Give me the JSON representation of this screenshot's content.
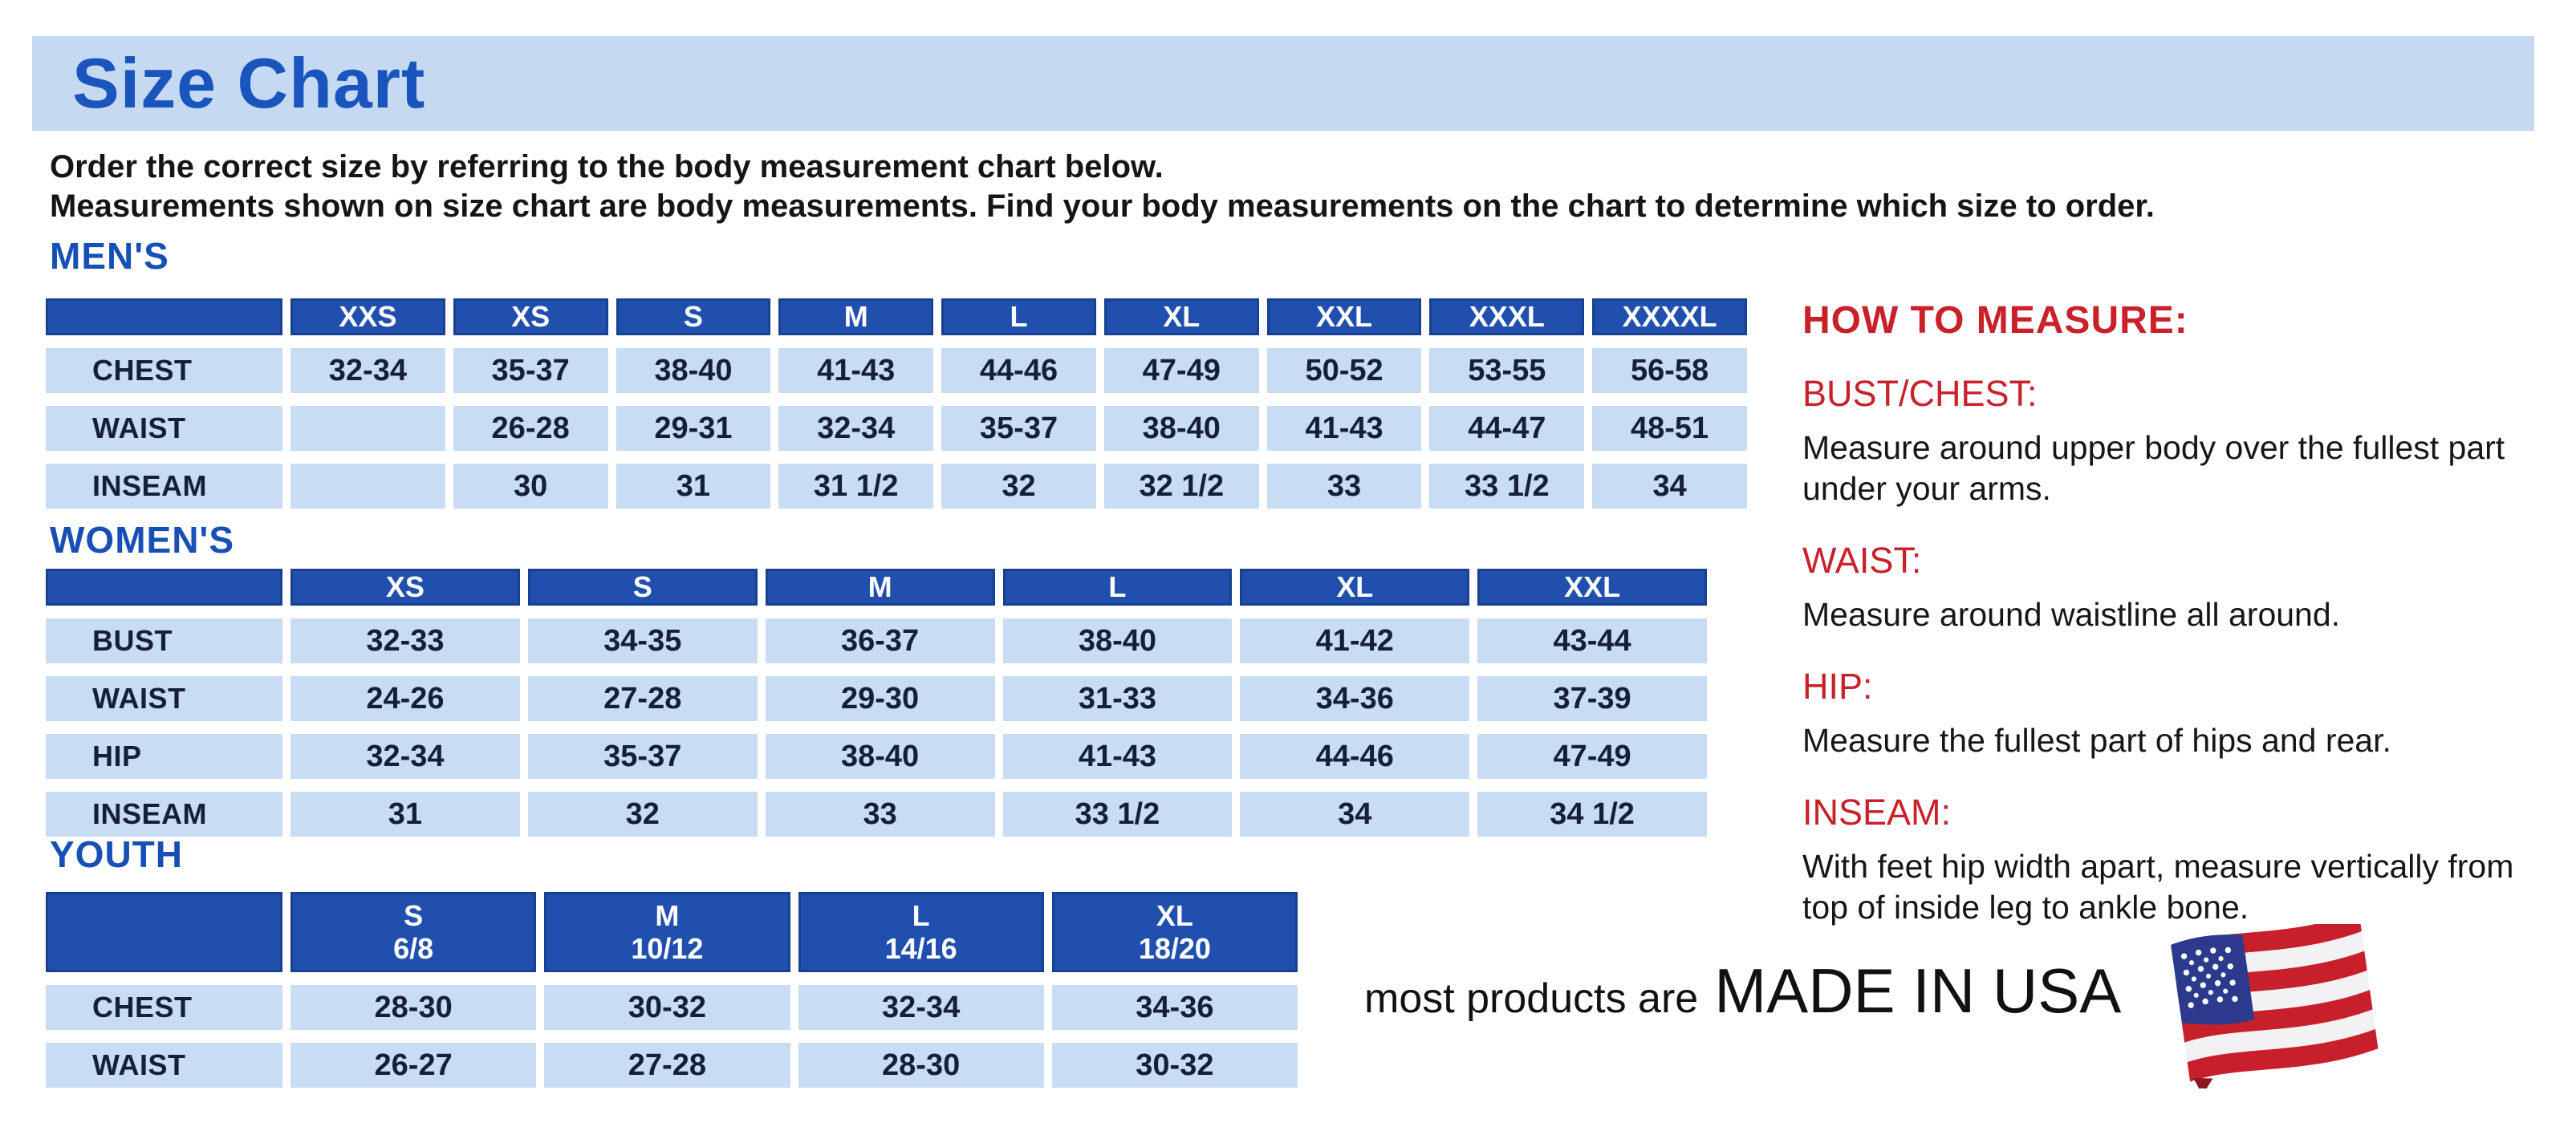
{
  "title": "Size Chart",
  "intro": {
    "line1": "Order the correct size by referring to the body measurement chart below.",
    "line2": "Measurements shown on size chart are body measurements.  Find your body measurements on the chart to determine which size to order."
  },
  "tables": {
    "mens": {
      "heading": "MEN'S",
      "columns": [
        "",
        "XXS",
        "XS",
        "S",
        "M",
        "L",
        "XL",
        "XXL",
        "XXXL",
        "XXXXL"
      ],
      "rows": [
        {
          "label": "CHEST",
          "values": [
            "32-34",
            "35-37",
            "38-40",
            "41-43",
            "44-46",
            "47-49",
            "50-52",
            "53-55",
            "56-58"
          ]
        },
        {
          "label": "WAIST",
          "values": [
            "",
            "26-28",
            "29-31",
            "32-34",
            "35-37",
            "38-40",
            "41-43",
            "44-47",
            "48-51"
          ]
        },
        {
          "label": "INSEAM",
          "values": [
            "",
            "30",
            "31",
            "31 1/2",
            "32",
            "32 1/2",
            "33",
            "33 1/2",
            "34"
          ]
        }
      ]
    },
    "womens": {
      "heading": "WOMEN'S",
      "columns": [
        "",
        "XS",
        "S",
        "M",
        "L",
        "XL",
        "XXL"
      ],
      "rows": [
        {
          "label": "BUST",
          "values": [
            "32-33",
            "34-35",
            "36-37",
            "38-40",
            "41-42",
            "43-44"
          ]
        },
        {
          "label": "WAIST",
          "values": [
            "24-26",
            "27-28",
            "29-30",
            "31-33",
            "34-36",
            "37-39"
          ]
        },
        {
          "label": "HIP",
          "values": [
            "32-34",
            "35-37",
            "38-40",
            "41-43",
            "44-46",
            "47-49"
          ]
        },
        {
          "label": "INSEAM",
          "values": [
            "31",
            "32",
            "33",
            "33 1/2",
            "34",
            "34 1/2"
          ]
        }
      ]
    },
    "youth": {
      "heading": "YOUTH",
      "columns": [
        "",
        "S\n6/8",
        "M\n10/12",
        "L\n14/16",
        "XL\n18/20"
      ],
      "rows": [
        {
          "label": "CHEST",
          "values": [
            "28-30",
            "30-32",
            "32-34",
            "34-36"
          ]
        },
        {
          "label": "WAIST",
          "values": [
            "26-27",
            "27-28",
            "28-30",
            "30-32"
          ]
        }
      ]
    }
  },
  "how_to_measure": {
    "heading": "HOW TO MEASURE:",
    "items": [
      {
        "label": "BUST/CHEST:",
        "text": "Measure around upper body over the fullest part under your arms."
      },
      {
        "label": "WAIST:",
        "text": "Measure around waistline all around."
      },
      {
        "label": "HIP:",
        "text": "Measure the fullest part of hips and rear."
      },
      {
        "label": "INSEAM:",
        "text": "With feet hip width apart, measure vertically from top of inside leg to ankle bone."
      }
    ]
  },
  "footer": {
    "prefix": "most products are",
    "emphasis": "MADE IN USA",
    "flag_icon": "us-flag-icon"
  },
  "colors": {
    "banner_blue": "#c5d9f2",
    "accent_blue": "#1750b4",
    "header_blue": "#204fae",
    "cell_blue": "#c8dcf3",
    "table_text": "#152038",
    "red": "#c9202a",
    "flag_blue": "#2b3a8c",
    "flag_red": "#c8202b"
  }
}
